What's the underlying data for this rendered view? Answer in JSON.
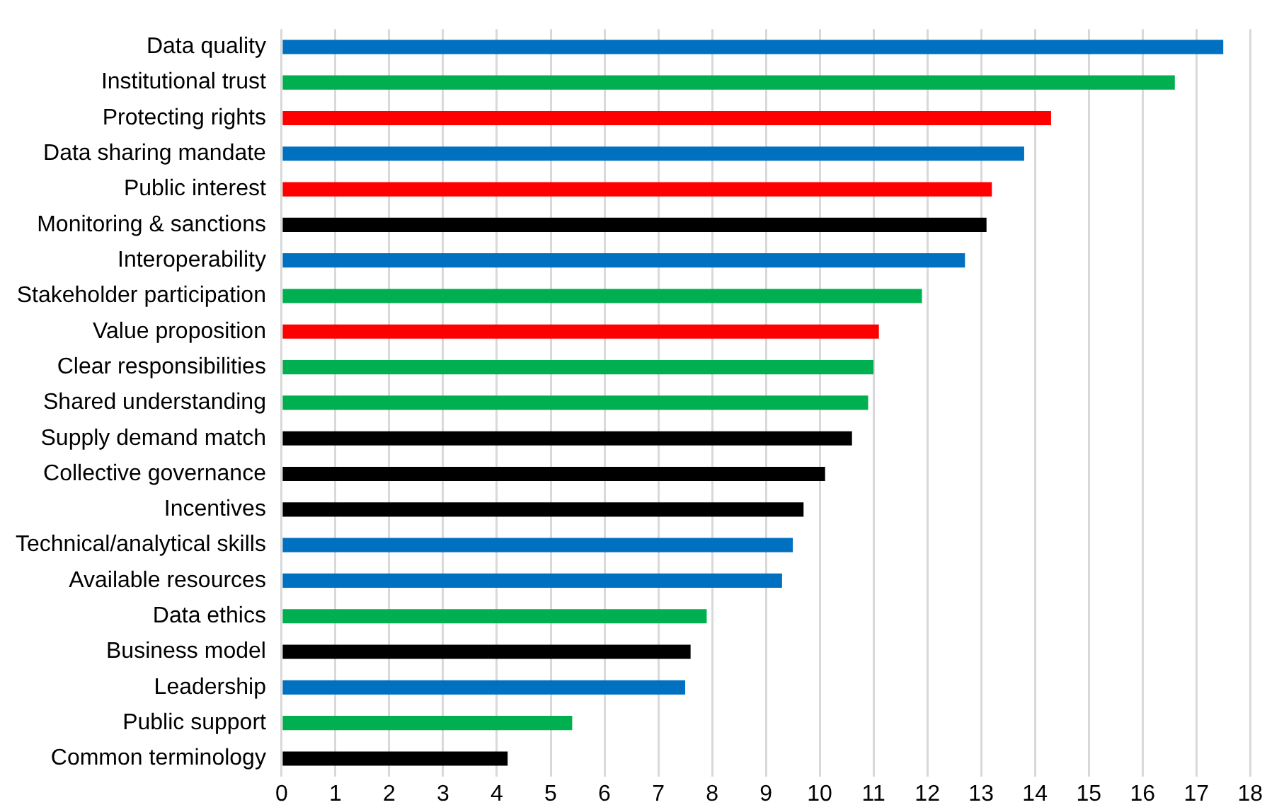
{
  "chart_data": {
    "type": "bar",
    "orientation": "horizontal",
    "categories": [
      "Data quality",
      "Institutional trust",
      "Protecting rights",
      "Data sharing mandate",
      "Public interest",
      "Monitoring & sanctions",
      "Interoperability",
      "Stakeholder participation",
      "Value proposition",
      "Clear responsibilities",
      "Shared understanding",
      "Supply demand match",
      "Collective governance",
      "Incentives",
      "Technical/analytical skills",
      "Available resources",
      "Data ethics",
      "Business model",
      "Leadership",
      "Public support",
      "Common terminology"
    ],
    "values": [
      17.5,
      16.6,
      14.3,
      13.8,
      13.2,
      13.1,
      12.7,
      11.9,
      11.1,
      11.0,
      10.9,
      10.6,
      10.1,
      9.7,
      9.5,
      9.3,
      7.9,
      7.6,
      7.5,
      5.4,
      4.2
    ],
    "colors": [
      "#0070c0",
      "#00b050",
      "#ff0000",
      "#0070c0",
      "#ff0000",
      "#000000",
      "#0070c0",
      "#00b050",
      "#ff0000",
      "#00b050",
      "#00b050",
      "#000000",
      "#000000",
      "#000000",
      "#0070c0",
      "#0070c0",
      "#00b050",
      "#000000",
      "#0070c0",
      "#00b050",
      "#000000"
    ],
    "xlim": [
      0,
      18
    ],
    "xticks": [
      0,
      1,
      2,
      3,
      4,
      5,
      6,
      7,
      8,
      9,
      10,
      11,
      12,
      13,
      14,
      15,
      16,
      17,
      18
    ],
    "grid": "x",
    "legend": false
  }
}
